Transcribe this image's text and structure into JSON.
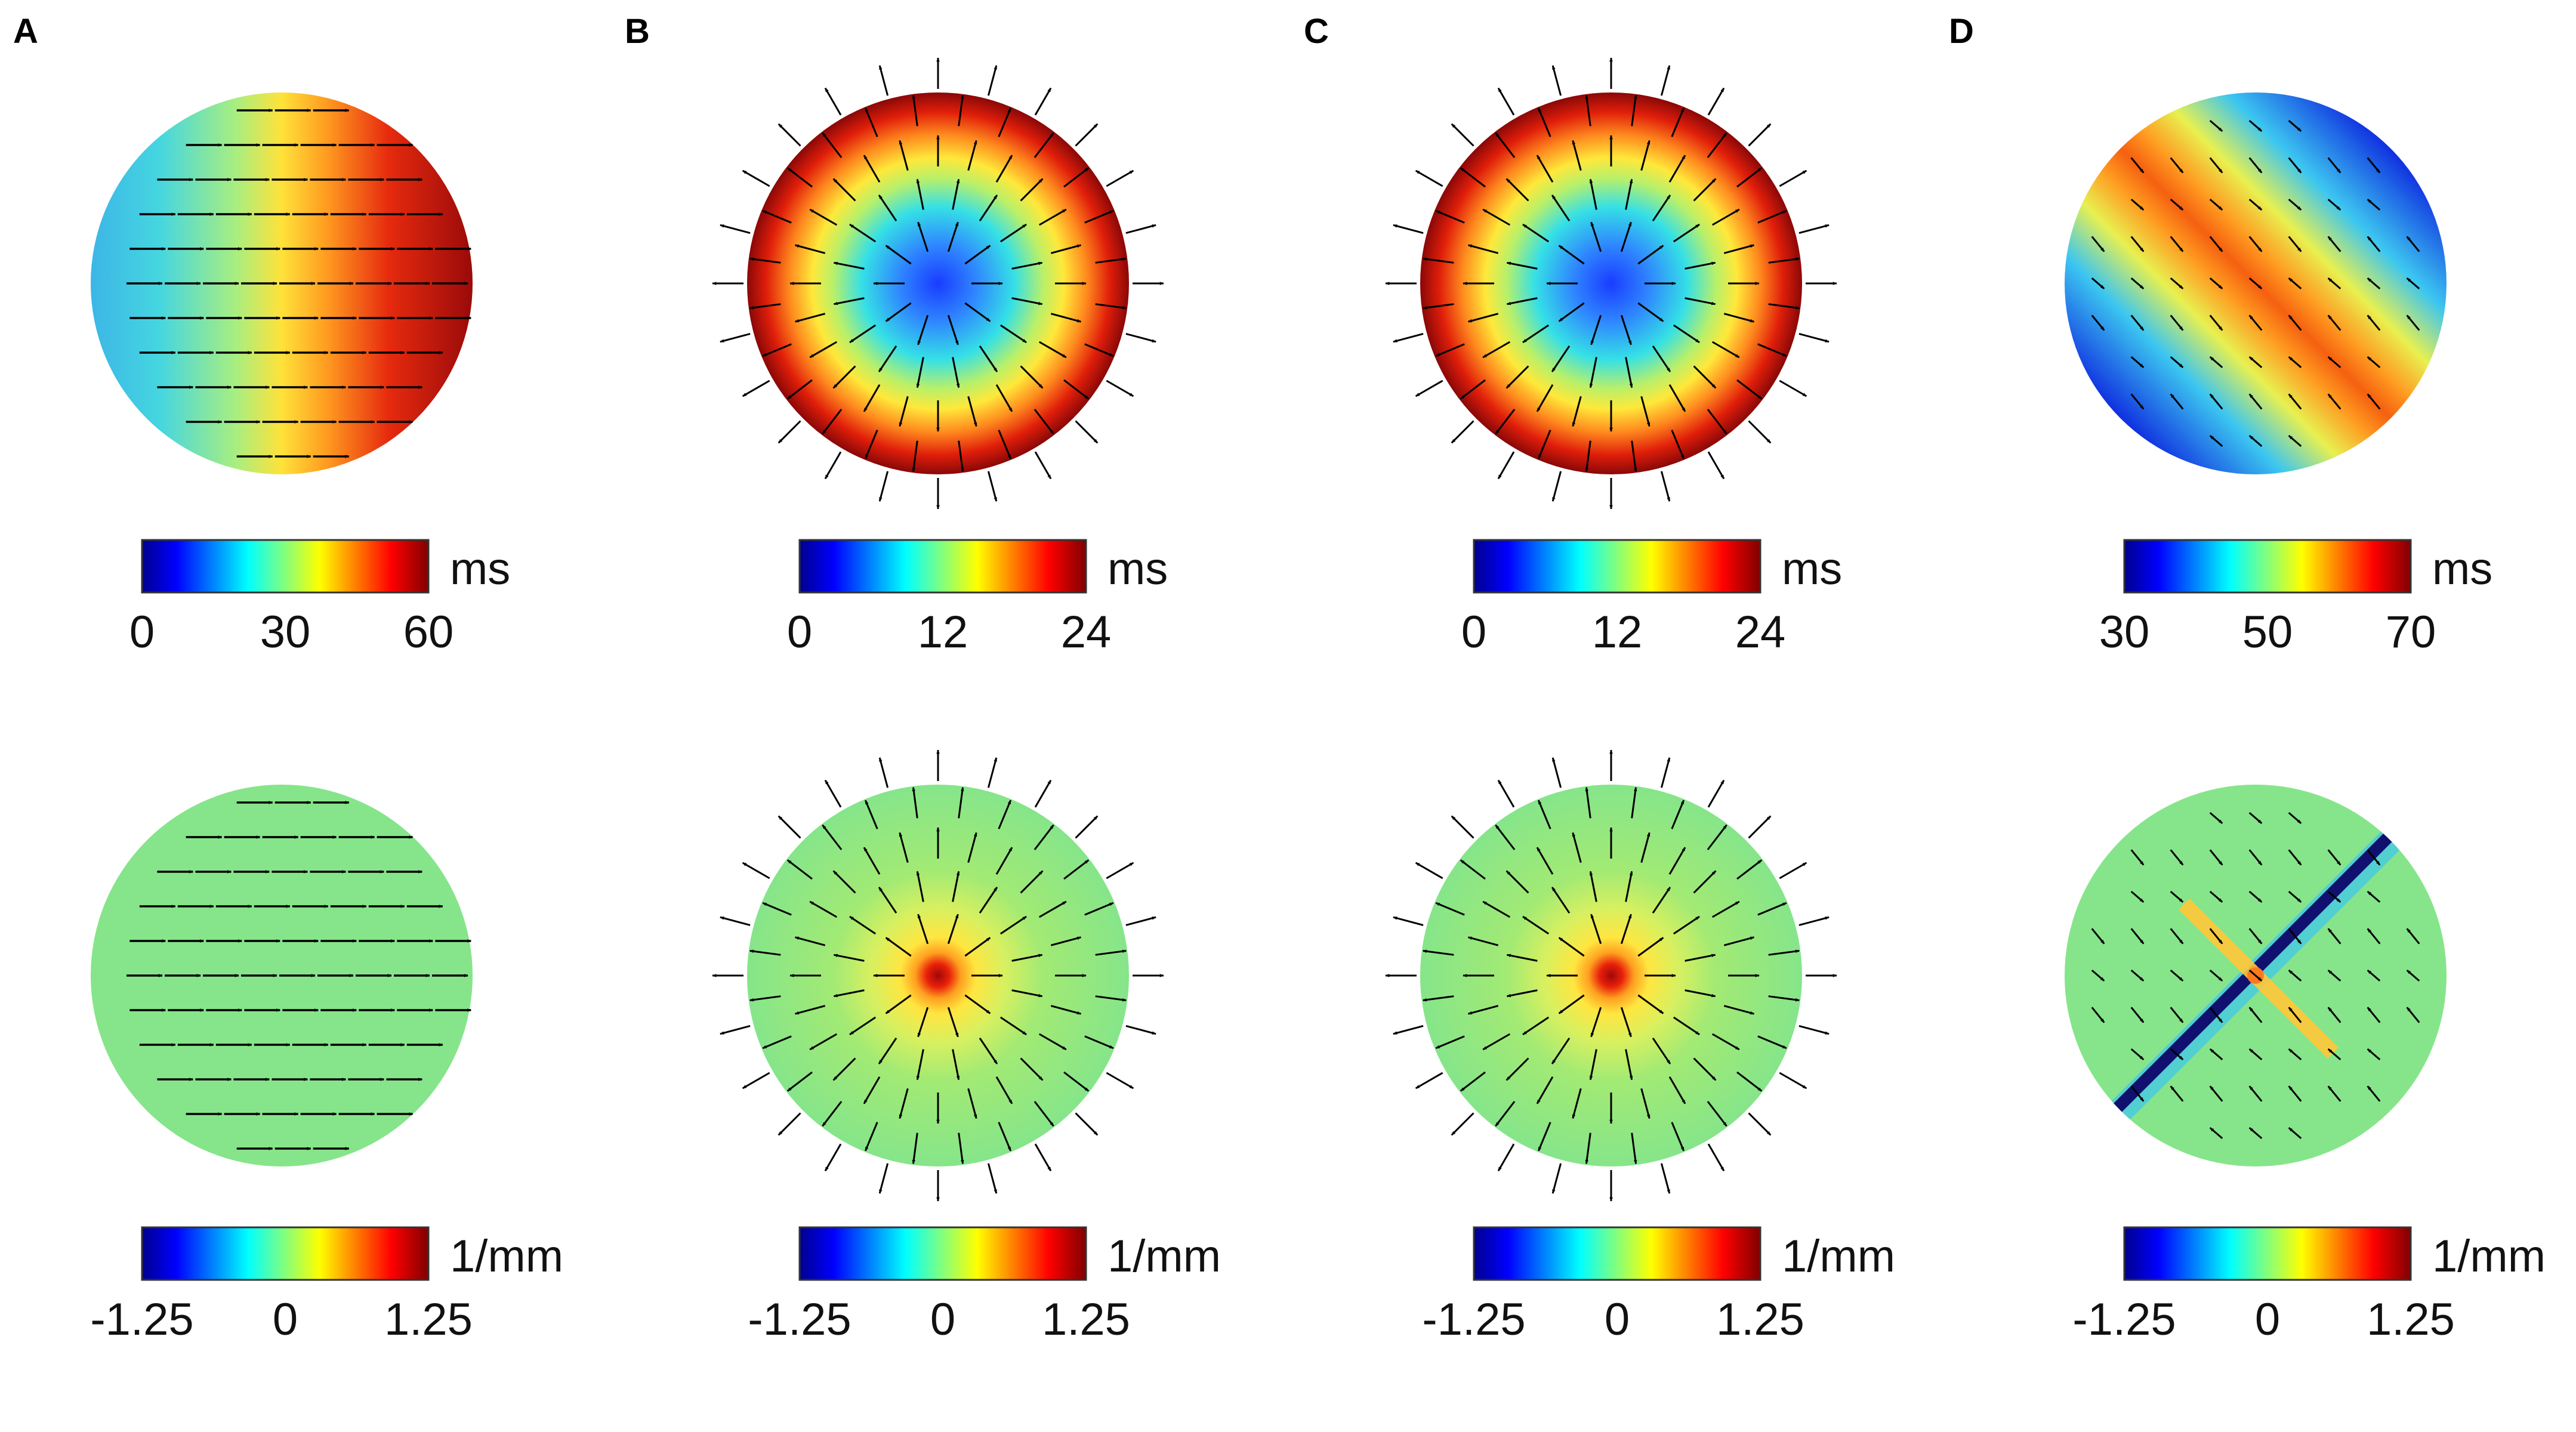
{
  "figure": {
    "panels": [
      {
        "label": "A",
        "activation": {
          "pattern": "planar-horizontal",
          "colorbar": {
            "unit": "ms",
            "ticks": [
              "0",
              "30",
              "60"
            ],
            "min": 0,
            "max": 60
          }
        },
        "curvature": {
          "pattern": "planar-uniform",
          "colorbar": {
            "unit": "1/mm",
            "ticks": [
              "-1.25",
              "0",
              "1.25"
            ],
            "min": -1.25,
            "max": 1.25
          }
        }
      },
      {
        "label": "B",
        "activation": {
          "pattern": "radial-focal",
          "colorbar": {
            "unit": "ms",
            "ticks": [
              "0",
              "12",
              "24"
            ],
            "min": 0,
            "max": 24
          }
        },
        "curvature": {
          "pattern": "radial-peak",
          "colorbar": {
            "unit": "1/mm",
            "ticks": [
              "-1.25",
              "0",
              "1.25"
            ],
            "min": -1.25,
            "max": 1.25
          }
        }
      },
      {
        "label": "C",
        "activation": {
          "pattern": "radial-focal",
          "colorbar": {
            "unit": "ms",
            "ticks": [
              "0",
              "12",
              "24"
            ],
            "min": 0,
            "max": 24
          }
        },
        "curvature": {
          "pattern": "radial-peak",
          "colorbar": {
            "unit": "1/mm",
            "ticks": [
              "-1.25",
              "0",
              "1.25"
            ],
            "min": -1.25,
            "max": 1.25
          }
        }
      },
      {
        "label": "D",
        "activation": {
          "pattern": "collision-diagonal",
          "colorbar": {
            "unit": "ms",
            "ticks": [
              "30",
              "50",
              "70"
            ],
            "min": 30,
            "max": 70
          }
        },
        "curvature": {
          "pattern": "collision-line",
          "colorbar": {
            "unit": "1/mm",
            "ticks": [
              "-1.25",
              "0",
              "1.25"
            ],
            "min": -1.25,
            "max": 1.25
          }
        }
      }
    ],
    "colormap": [
      "#00008f",
      "#0000ff",
      "#00ffff",
      "#ffff00",
      "#ff0000",
      "#800000"
    ],
    "arrow_color": "#000000"
  }
}
